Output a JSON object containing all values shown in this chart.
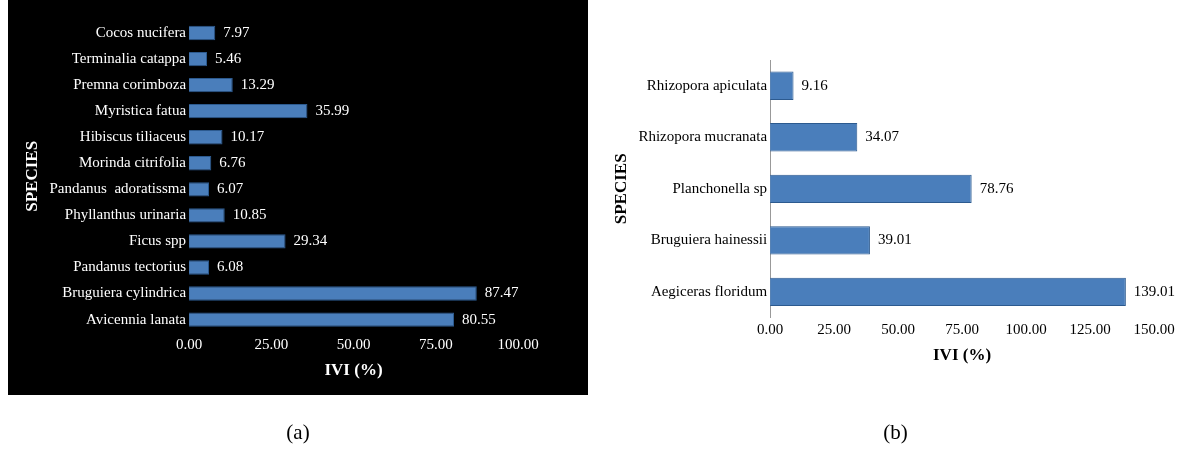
{
  "chart_data": [
    {
      "type": "bar",
      "orientation": "horizontal",
      "xlabel": "IVI (%)",
      "ylabel": "SPECIES",
      "categories": [
        "Cocos nucifera",
        "Terminalia catappa",
        "Premna corimboza",
        "Myristica fatua",
        "Hibiscus tiliaceus",
        "Morinda citrifolia",
        "Pandanus  adoratissma",
        "Phyllanthus urinaria",
        "Ficus spp",
        "Pandanus tectorius",
        "Bruguiera cylindrica",
        "Avicennia lanata"
      ],
      "values": [
        7.97,
        5.46,
        13.29,
        35.99,
        10.17,
        6.76,
        6.07,
        10.85,
        29.34,
        6.08,
        87.47,
        80.55
      ],
      "color": "#4a7ebb",
      "data_labels": true,
      "grid": false,
      "legend": false,
      "xlim": [
        0,
        100
      ],
      "xticks": [
        {
          "value": 0,
          "label": "0.00"
        },
        {
          "value": 25,
          "label": "25.00"
        },
        {
          "value": 50,
          "label": "50.00"
        },
        {
          "value": 75,
          "label": "75.00"
        },
        {
          "value": 100,
          "label": "100.00"
        }
      ],
      "annotations": [
        "(a)"
      ]
    },
    {
      "type": "bar",
      "orientation": "horizontal",
      "xlabel": "IVI (%)",
      "ylabel": "SPECIES",
      "categories": [
        "Rhizopora apiculata",
        "Rhizopora mucranata",
        "Planchonella sp",
        "Bruguiera hainessii",
        "Aegiceras floridum"
      ],
      "values": [
        9.16,
        34.07,
        78.76,
        39.01,
        139.01
      ],
      "color": "#4a7ebb",
      "data_labels": true,
      "grid": false,
      "legend": false,
      "xlim": [
        0,
        150
      ],
      "xticks": [
        {
          "value": 0,
          "label": "0.00"
        },
        {
          "value": 25,
          "label": "25.00"
        },
        {
          "value": 50,
          "label": "50.00"
        },
        {
          "value": 75,
          "label": "75.00"
        },
        {
          "value": 100,
          "label": "100.00"
        },
        {
          "value": 125,
          "label": "125.00"
        },
        {
          "value": 150,
          "label": "150.00"
        }
      ],
      "annotations": [
        "(b)"
      ]
    }
  ]
}
